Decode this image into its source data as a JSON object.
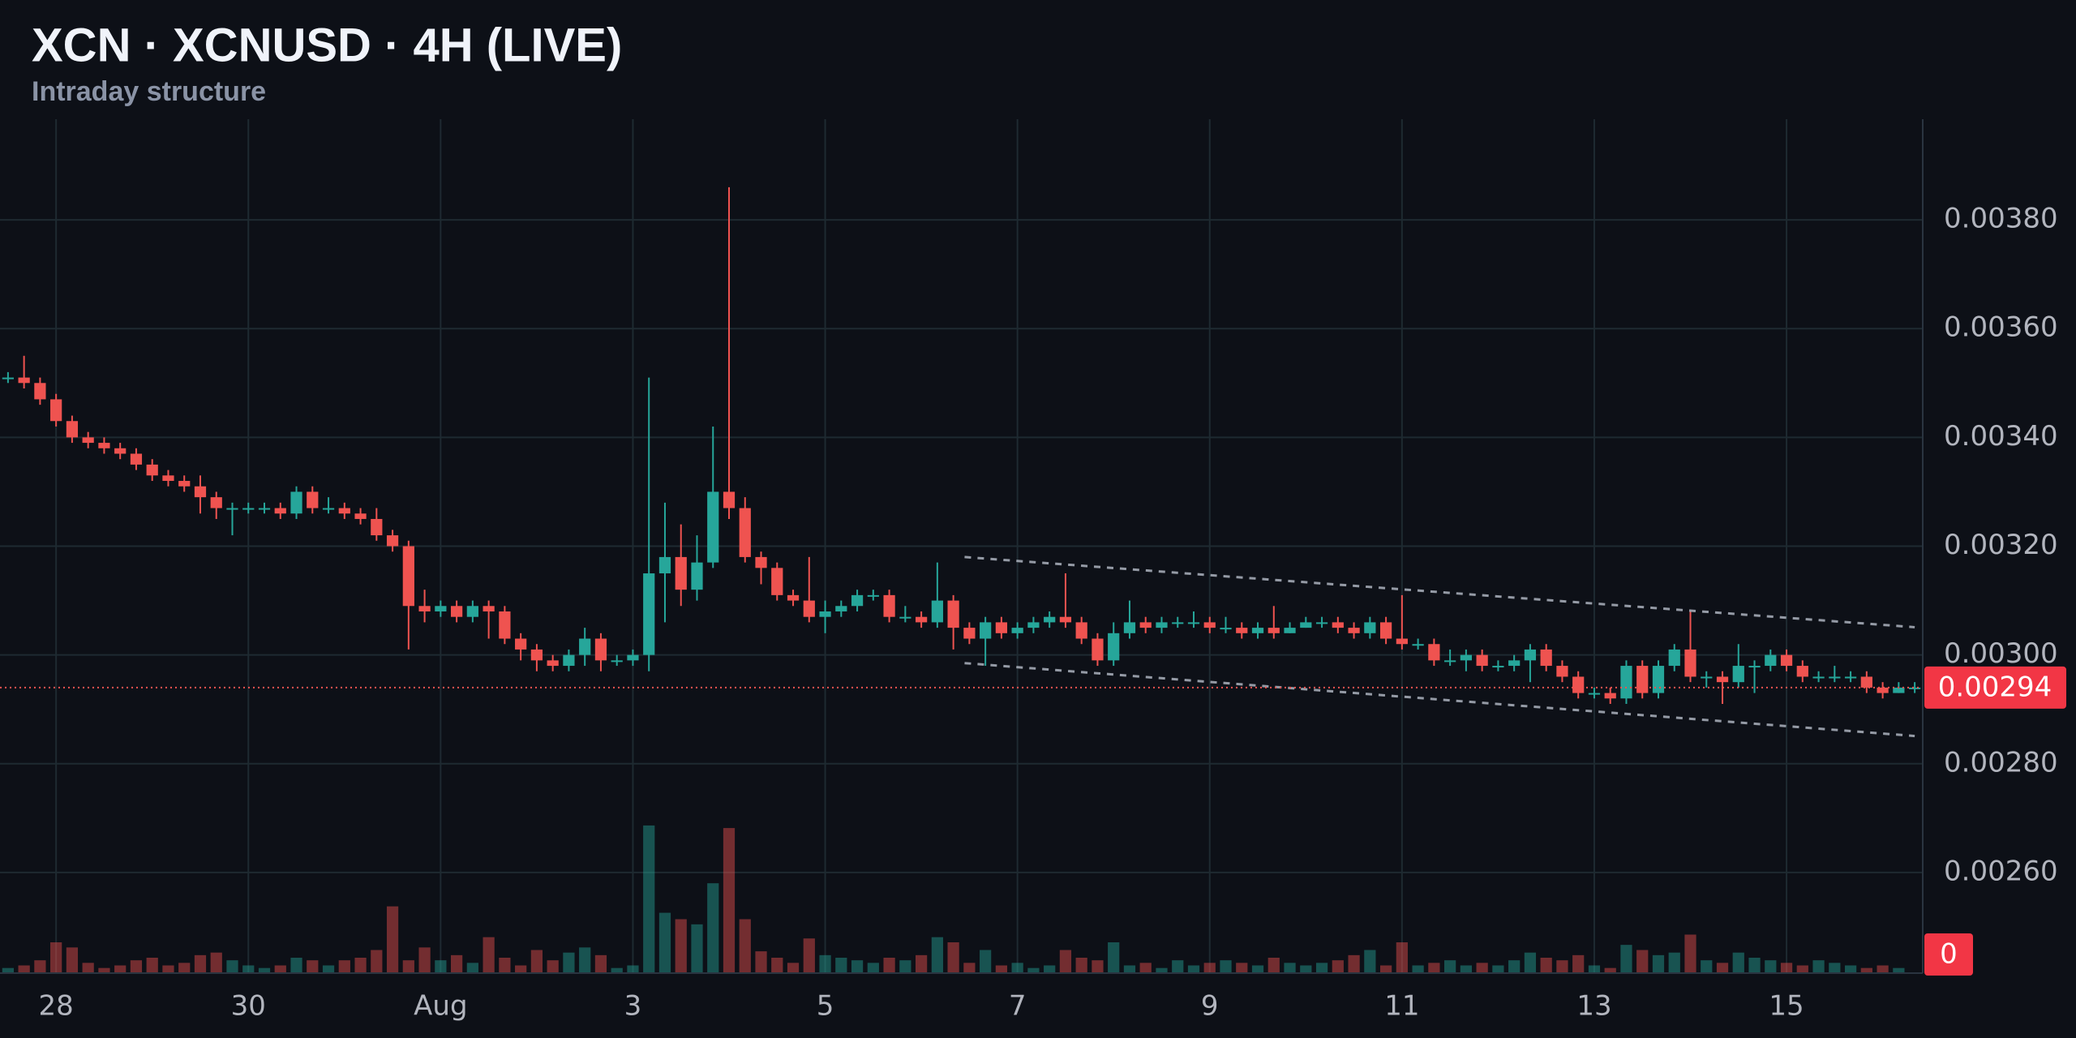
{
  "chart_data": {
    "type": "candlestick",
    "title": "XCN · XCNUSD · 4H (LIVE)",
    "subtitle": "Intraday structure",
    "categories": [
      null,
      null,
      null,
      "28",
      null,
      null,
      null,
      null,
      null,
      null,
      null,
      null,
      null,
      null,
      null,
      "30",
      null,
      null,
      null,
      null,
      null,
      null,
      null,
      null,
      null,
      null,
      null,
      "Aug",
      null,
      null,
      null,
      null,
      null,
      null,
      null,
      null,
      null,
      null,
      null,
      "3",
      null,
      null,
      null,
      null,
      null,
      null,
      null,
      null,
      null,
      null,
      null,
      "5",
      null,
      null,
      null,
      null,
      null,
      null,
      null,
      null,
      null,
      null,
      null,
      "7",
      null,
      null,
      null,
      null,
      null,
      null,
      null,
      null,
      null,
      null,
      null,
      "9",
      null,
      null,
      null,
      null,
      null,
      null,
      null,
      null,
      null,
      null,
      null,
      "11",
      null,
      null,
      null,
      null,
      null,
      null,
      null,
      null,
      null,
      null,
      null,
      "13",
      null,
      null,
      null,
      null,
      null,
      null,
      null,
      null,
      null,
      null,
      null,
      "15",
      null,
      null,
      null,
      null,
      null,
      null,
      null,
      null
    ],
    "open": [
      0.00351,
      0.00351,
      0.0035,
      0.00347,
      0.00343,
      0.0034,
      0.00339,
      0.00338,
      0.00337,
      0.00335,
      0.00333,
      0.00332,
      0.00331,
      0.00329,
      0.00327,
      0.00327,
      0.00327,
      0.00327,
      0.00326,
      0.0033,
      0.00327,
      0.00327,
      0.00326,
      0.00325,
      0.00322,
      0.0032,
      0.00309,
      0.00308,
      0.00309,
      0.00307,
      0.00309,
      0.00308,
      0.00303,
      0.00301,
      0.00299,
      0.00298,
      0.003,
      0.00303,
      0.00299,
      0.00299,
      0.003,
      0.00315,
      0.00318,
      0.00312,
      0.00317,
      0.0033,
      0.00327,
      0.00318,
      0.00316,
      0.00311,
      0.0031,
      0.00307,
      0.00308,
      0.00309,
      0.00311,
      0.00311,
      0.00307,
      0.00307,
      0.00306,
      0.0031,
      0.00305,
      0.00303,
      0.00306,
      0.00304,
      0.00305,
      0.00306,
      0.00307,
      0.00306,
      0.00303,
      0.00299,
      0.00304,
      0.00306,
      0.00305,
      0.00306,
      0.00306,
      0.00306,
      0.00305,
      0.00305,
      0.00304,
      0.00305,
      0.00304,
      0.00305,
      0.00306,
      0.00306,
      0.00305,
      0.00304,
      0.00306,
      0.00303,
      0.00302,
      0.00302,
      0.00299,
      0.00299,
      0.003,
      0.00298,
      0.00298,
      0.00299,
      0.00301,
      0.00298,
      0.00296,
      0.00293,
      0.00293,
      0.00292,
      0.00298,
      0.00293,
      0.00298,
      0.00301,
      0.00296,
      0.00296,
      0.00295,
      0.00298,
      0.00298,
      0.003,
      0.00298,
      0.00296,
      0.00296,
      0.00296,
      0.00296,
      0.00294,
      0.00293,
      0.00294
    ],
    "high": [
      0.00352,
      0.00355,
      0.00351,
      0.00348,
      0.00344,
      0.00341,
      0.0034,
      0.00339,
      0.00338,
      0.00336,
      0.00334,
      0.00333,
      0.00333,
      0.0033,
      0.00328,
      0.00328,
      0.00328,
      0.00328,
      0.00331,
      0.00331,
      0.00329,
      0.00328,
      0.00327,
      0.00327,
      0.00323,
      0.00321,
      0.00312,
      0.0031,
      0.0031,
      0.0031,
      0.0031,
      0.00309,
      0.00304,
      0.00302,
      0.003,
      0.00301,
      0.00305,
      0.00304,
      0.003,
      0.00301,
      0.00351,
      0.00328,
      0.00324,
      0.00322,
      0.00342,
      0.00386,
      0.00329,
      0.00319,
      0.00317,
      0.00312,
      0.00318,
      0.0031,
      0.0031,
      0.00312,
      0.00312,
      0.00312,
      0.00309,
      0.00308,
      0.00317,
      0.00311,
      0.00306,
      0.00307,
      0.00307,
      0.00306,
      0.00307,
      0.00308,
      0.00315,
      0.00307,
      0.00304,
      0.00306,
      0.0031,
      0.00307,
      0.00307,
      0.00307,
      0.00308,
      0.00307,
      0.00307,
      0.00306,
      0.00306,
      0.00309,
      0.00306,
      0.00307,
      0.00307,
      0.00307,
      0.00306,
      0.00307,
      0.00307,
      0.00311,
      0.00303,
      0.00303,
      0.00301,
      0.00301,
      0.00301,
      0.00299,
      0.003,
      0.00302,
      0.00302,
      0.00299,
      0.00297,
      0.00294,
      0.00294,
      0.00299,
      0.00299,
      0.00299,
      0.00302,
      0.00308,
      0.00297,
      0.00297,
      0.00302,
      0.00299,
      0.00301,
      0.00301,
      0.00299,
      0.00297,
      0.00298,
      0.00297,
      0.00297,
      0.00295,
      0.00295,
      0.00295
    ],
    "low": [
      0.0035,
      0.00349,
      0.00346,
      0.00342,
      0.00339,
      0.00338,
      0.00337,
      0.00336,
      0.00334,
      0.00332,
      0.00331,
      0.0033,
      0.00326,
      0.00325,
      0.00322,
      0.00326,
      0.00326,
      0.00325,
      0.00325,
      0.00326,
      0.00326,
      0.00325,
      0.00324,
      0.00321,
      0.00319,
      0.00301,
      0.00306,
      0.00307,
      0.00306,
      0.00306,
      0.00303,
      0.00302,
      0.00299,
      0.00297,
      0.00297,
      0.00297,
      0.00298,
      0.00297,
      0.00298,
      0.00298,
      0.00297,
      0.00306,
      0.00309,
      0.0031,
      0.00316,
      0.00325,
      0.00317,
      0.00313,
      0.0031,
      0.00309,
      0.00306,
      0.00304,
      0.00307,
      0.00308,
      0.0031,
      0.00306,
      0.00306,
      0.00305,
      0.00305,
      0.00301,
      0.00302,
      0.00298,
      0.00303,
      0.00303,
      0.00304,
      0.00305,
      0.00305,
      0.00302,
      0.00298,
      0.00298,
      0.00303,
      0.00304,
      0.00304,
      0.00305,
      0.00305,
      0.00304,
      0.00304,
      0.00303,
      0.00303,
      0.00303,
      0.00304,
      0.00305,
      0.00305,
      0.00304,
      0.00303,
      0.00303,
      0.00302,
      0.00301,
      0.00301,
      0.00298,
      0.00298,
      0.00297,
      0.00297,
      0.00297,
      0.00297,
      0.00295,
      0.00297,
      0.00295,
      0.00292,
      0.00292,
      0.00291,
      0.00291,
      0.00292,
      0.00292,
      0.00297,
      0.00295,
      0.00294,
      0.00291,
      0.00294,
      0.00293,
      0.00297,
      0.00297,
      0.00295,
      0.00295,
      0.00295,
      0.00295,
      0.00293,
      0.00292,
      0.00293,
      0.00293
    ],
    "close": [
      0.00351,
      0.0035,
      0.00347,
      0.00343,
      0.0034,
      0.00339,
      0.00338,
      0.00337,
      0.00335,
      0.00333,
      0.00332,
      0.00331,
      0.00329,
      0.00327,
      0.00327,
      0.00327,
      0.00327,
      0.00326,
      0.0033,
      0.00327,
      0.00327,
      0.00326,
      0.00325,
      0.00322,
      0.0032,
      0.00309,
      0.00308,
      0.00309,
      0.00307,
      0.00309,
      0.00308,
      0.00303,
      0.00301,
      0.00299,
      0.00298,
      0.003,
      0.00303,
      0.00299,
      0.00299,
      0.003,
      0.00315,
      0.00318,
      0.00312,
      0.00317,
      0.0033,
      0.00327,
      0.00318,
      0.00316,
      0.00311,
      0.0031,
      0.00307,
      0.00308,
      0.00309,
      0.00311,
      0.00311,
      0.00307,
      0.00307,
      0.00306,
      0.0031,
      0.00305,
      0.00303,
      0.00306,
      0.00304,
      0.00305,
      0.00306,
      0.00307,
      0.00306,
      0.00303,
      0.00299,
      0.00304,
      0.00306,
      0.00305,
      0.00306,
      0.00306,
      0.00306,
      0.00305,
      0.00305,
      0.00304,
      0.00305,
      0.00304,
      0.00305,
      0.00306,
      0.00306,
      0.00305,
      0.00304,
      0.00306,
      0.00303,
      0.00302,
      0.00302,
      0.00299,
      0.00299,
      0.003,
      0.00298,
      0.00298,
      0.00299,
      0.00301,
      0.00298,
      0.00296,
      0.00293,
      0.00293,
      0.00292,
      0.00298,
      0.00293,
      0.00298,
      0.00301,
      0.00296,
      0.00296,
      0.00295,
      0.00298,
      0.00298,
      0.003,
      0.00298,
      0.00296,
      0.00296,
      0.00296,
      0.00296,
      0.00294,
      0.00293,
      0.00294,
      0.00294
    ],
    "volume": [
      4,
      6,
      10,
      24,
      20,
      8,
      4,
      6,
      10,
      12,
      6,
      8,
      14,
      16,
      10,
      6,
      4,
      6,
      12,
      10,
      6,
      10,
      12,
      18,
      52,
      10,
      20,
      10,
      14,
      8,
      28,
      12,
      6,
      18,
      10,
      16,
      20,
      14,
      4,
      6,
      115,
      47,
      42,
      38,
      70,
      113,
      42,
      17,
      12,
      8,
      27,
      14,
      12,
      10,
      8,
      12,
      10,
      14,
      28,
      24,
      8,
      18,
      6,
      8,
      4,
      6,
      18,
      12,
      10,
      24,
      6,
      8,
      4,
      10,
      6,
      8,
      10,
      8,
      6,
      12,
      8,
      6,
      8,
      10,
      14,
      18,
      6,
      24,
      6,
      8,
      10,
      6,
      8,
      6,
      10,
      16,
      12,
      10,
      14,
      6,
      4,
      22,
      18,
      14,
      16,
      30,
      10,
      8,
      16,
      12,
      10,
      8,
      6,
      10,
      8,
      6,
      4,
      6,
      4,
      0
    ],
    "volume_lim": [
      0,
      120
    ],
    "up_color": "#26a69a",
    "down_color": "#ef5350",
    "ylim": [
      0.002415,
      0.003985
    ],
    "yticks": [
      {
        "value": 0.0026,
        "label": "0.00260"
      },
      {
        "value": 0.0028,
        "label": "0.00280"
      },
      {
        "value": 0.003,
        "label": "0.00300"
      },
      {
        "value": 0.0032,
        "label": "0.00320"
      },
      {
        "value": 0.0034,
        "label": "0.00340"
      },
      {
        "value": 0.0036,
        "label": "0.00360"
      },
      {
        "value": 0.0038,
        "label": "0.00380"
      }
    ],
    "last_price": 0.00294,
    "trendlines": [
      {
        "values": [
          0.00318,
          0.003051
        ]
      },
      {
        "values": [
          0.002985,
          0.002851
        ]
      }
    ],
    "grid": true
  }
}
